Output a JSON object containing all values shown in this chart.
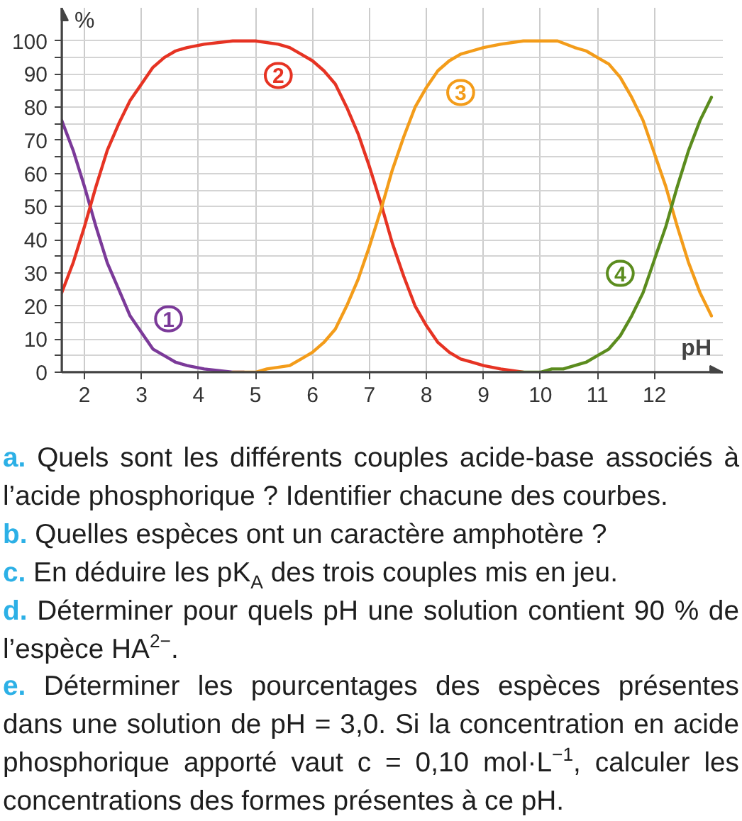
{
  "chart_data": {
    "type": "line",
    "xlabel": "pH",
    "ylabel": "%",
    "xlim": [
      1.6,
      13.2
    ],
    "ylim": [
      0,
      110
    ],
    "xticks": [
      2,
      3,
      4,
      5,
      6,
      7,
      8,
      9,
      10,
      11,
      12
    ],
    "yticks": [
      0,
      {
        "value": 5,
        "label": null
      },
      10,
      {
        "value": 15,
        "label": null
      },
      20,
      {
        "value": 25,
        "label": null
      },
      30,
      {
        "value": 35,
        "label": null
      },
      40,
      {
        "value": 45,
        "label": null
      },
      50,
      {
        "value": 55,
        "label": null
      },
      60,
      {
        "value": 65,
        "label": null
      },
      70,
      {
        "value": 75,
        "label": null
      },
      80,
      {
        "value": 85,
        "label": null
      },
      90,
      {
        "value": 95,
        "label": null
      },
      100
    ],
    "grid": true,
    "line_style": "solid",
    "series": [
      {
        "name": "1",
        "color": "#7b3a99",
        "x": [
          1.6,
          1.8,
          2.0,
          2.2,
          2.4,
          2.6,
          2.8,
          3.0,
          3.2,
          3.4,
          3.6,
          3.8,
          4.1,
          4.6,
          4.8
        ],
        "values": [
          76,
          67,
          56,
          44,
          33,
          25,
          17,
          12,
          7,
          5,
          3,
          2,
          1,
          0,
          0
        ]
      },
      {
        "name": "2",
        "color": "#e63323",
        "x": [
          1.6,
          1.8,
          2.0,
          2.2,
          2.4,
          2.6,
          2.8,
          3.0,
          3.2,
          3.4,
          3.6,
          3.8,
          4.1,
          4.6,
          5.0,
          5.4,
          5.6,
          5.8,
          6.0,
          6.2,
          6.4,
          6.6,
          6.8,
          7.0,
          7.2,
          7.4,
          7.6,
          7.8,
          8.0,
          8.2,
          8.4,
          8.6,
          8.8,
          9.0,
          9.3,
          9.7
        ],
        "values": [
          24,
          33,
          44,
          56,
          67,
          75,
          82,
          87,
          92,
          95,
          97,
          98,
          99,
          100,
          100,
          99,
          98,
          96,
          94,
          91,
          87,
          80,
          72,
          62,
          51,
          39,
          29,
          20,
          14,
          9,
          6,
          4,
          3,
          2,
          1,
          0
        ]
      },
      {
        "name": "3",
        "color": "#f39c1a",
        "x": [
          4.6,
          5.0,
          5.2,
          5.6,
          5.8,
          6.0,
          6.2,
          6.4,
          6.6,
          6.8,
          7.0,
          7.2,
          7.4,
          7.6,
          7.8,
          8.0,
          8.2,
          8.4,
          8.6,
          8.8,
          9.0,
          9.3,
          9.7,
          10.3,
          10.6,
          10.8,
          11.0,
          11.2,
          11.4,
          11.6,
          11.8,
          12.0,
          12.2,
          12.4,
          12.6,
          12.8,
          13.0
        ],
        "values": [
          0,
          0,
          1,
          2,
          4,
          6,
          9,
          13,
          20,
          28,
          38,
          49,
          61,
          71,
          80,
          86,
          91,
          94,
          96,
          97,
          98,
          99,
          100,
          100,
          98,
          97,
          95,
          93,
          89,
          83,
          76,
          66,
          56,
          44,
          33,
          24,
          17
        ]
      },
      {
        "name": "4",
        "color": "#5b8c1e",
        "x": [
          9.6,
          10.0,
          10.2,
          10.4,
          10.6,
          10.8,
          11.0,
          11.2,
          11.4,
          11.6,
          11.8,
          12.0,
          12.2,
          12.4,
          12.6,
          12.8,
          13.0
        ],
        "values": [
          0,
          0,
          1,
          1,
          2,
          3,
          5,
          7,
          11,
          17,
          24,
          34,
          44,
          56,
          67,
          76,
          83
        ]
      }
    ],
    "annotations": [
      "a. Quels sont les différents couples acide-base associés à l’acide phosphorique ? Identifier chacune des courbes.",
      "b. Quelles espèces ont un caractère amphotère ?",
      "c. En déduire les pK$_{A}$ des trois couples mis en jeu.",
      "d. Déterminer pour quels pH une solution contient 90 % de l’espèce HA$^{2−}$.",
      "e. Déterminer les pourcentages des espèces présentes dans une solution de pH = 3,0. Si la concentration en acide phosphorique apporté vaut c = 0,10 mol·L$^{−1}$, calculer les concentrations des formes présentes à ce pH."
    ]
  }
}
